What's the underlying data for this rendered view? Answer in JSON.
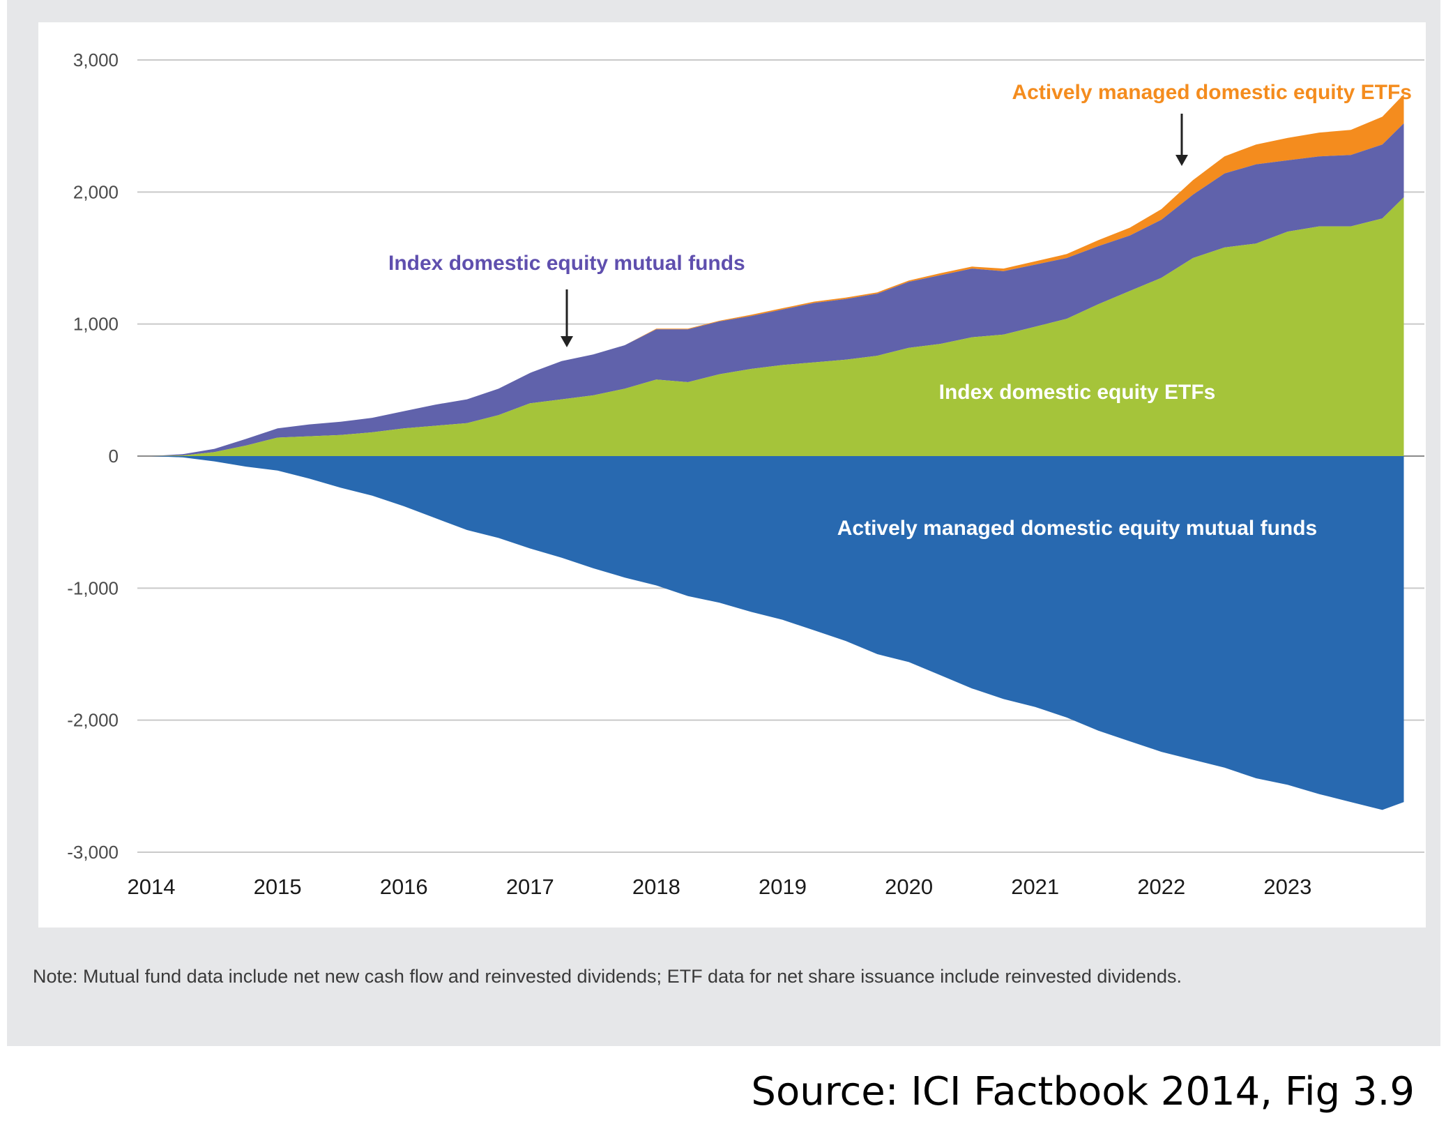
{
  "chart_data": {
    "type": "area",
    "title": "",
    "xlabel": "",
    "ylabel": "",
    "ylim": [
      -3000,
      3000
    ],
    "yticks": [
      "3,000",
      "2,000",
      "1,000",
      "0",
      "-1,000",
      "-2,000",
      "-3,000"
    ],
    "ytick_values": [
      3000,
      2000,
      1000,
      0,
      -1000,
      -2000,
      -3000
    ],
    "xticks": [
      "2014",
      "2015",
      "2016",
      "2017",
      "2018",
      "2019",
      "2020",
      "2021",
      "2022",
      "2023"
    ],
    "xtick_values": [
      2014,
      2015,
      2016,
      2017,
      2018,
      2019,
      2020,
      2021,
      2022,
      2023
    ],
    "xlim": [
      2014,
      2024
    ],
    "grid": "horizontal",
    "x": [
      2014.0,
      2014.25,
      2014.5,
      2014.75,
      2015.0,
      2015.25,
      2015.5,
      2015.75,
      2016.0,
      2016.25,
      2016.5,
      2016.75,
      2017.0,
      2017.25,
      2017.5,
      2017.75,
      2018.0,
      2018.25,
      2018.5,
      2018.75,
      2019.0,
      2019.25,
      2019.5,
      2019.75,
      2020.0,
      2020.25,
      2020.5,
      2020.75,
      2021.0,
      2021.25,
      2021.5,
      2021.75,
      2022.0,
      2022.25,
      2022.5,
      2022.75,
      2023.0,
      2023.25,
      2023.5,
      2023.75,
      2023.92
    ],
    "series": [
      {
        "name": "Index domestic equity ETFs",
        "color": "#a5c43a",
        "label_color": "#ffffff",
        "values": [
          0,
          5,
          30,
          80,
          140,
          150,
          160,
          180,
          210,
          230,
          250,
          310,
          400,
          430,
          460,
          510,
          580,
          560,
          620,
          660,
          690,
          710,
          730,
          760,
          820,
          850,
          900,
          920,
          980,
          1040,
          1150,
          1250,
          1350,
          1500,
          1580,
          1610,
          1700,
          1740,
          1740,
          1800,
          1960
        ]
      },
      {
        "name": "Index domestic equity mutual funds",
        "color": "#6062ab",
        "label_color": "#5f4fae",
        "values": [
          0,
          10,
          25,
          50,
          70,
          90,
          100,
          110,
          130,
          160,
          180,
          200,
          230,
          290,
          310,
          330,
          380,
          400,
          400,
          400,
          420,
          450,
          460,
          470,
          500,
          520,
          520,
          480,
          470,
          460,
          440,
          420,
          440,
          480,
          560,
          600,
          540,
          530,
          540,
          560,
          560
        ]
      },
      {
        "name": "Actively managed domestic equity ETFs",
        "color": "#f48c1e",
        "label_color": "#f48c1e",
        "values": [
          0,
          0,
          0,
          0,
          0,
          0,
          0,
          0,
          0,
          0,
          0,
          0,
          0,
          0,
          0,
          0,
          5,
          5,
          5,
          10,
          10,
          10,
          10,
          10,
          10,
          15,
          15,
          20,
          25,
          30,
          45,
          60,
          80,
          110,
          130,
          150,
          170,
          180,
          190,
          210,
          220
        ]
      },
      {
        "name": "Actively managed domestic equity mutual funds",
        "color": "#2869b0",
        "label_color": "#ffffff",
        "values": [
          0,
          -10,
          -40,
          -80,
          -110,
          -170,
          -240,
          -300,
          -380,
          -470,
          -560,
          -620,
          -700,
          -770,
          -850,
          -920,
          -980,
          -1060,
          -1110,
          -1180,
          -1240,
          -1320,
          -1400,
          -1500,
          -1560,
          -1660,
          -1760,
          -1840,
          -1900,
          -1980,
          -2080,
          -2160,
          -2240,
          -2300,
          -2360,
          -2440,
          -2490,
          -2560,
          -2620,
          -2680,
          -2620
        ]
      }
    ],
    "annotations": {
      "index_mf": "Index domestic equity mutual funds",
      "active_etf": "Actively managed domestic equity ETFs",
      "index_etf": "Index domestic equity ETFs",
      "active_mf": "Actively managed domestic equity mutual funds"
    }
  },
  "note": "Note: Mutual fund data include net new cash flow and reinvested dividends; ETF data for net share issuance include reinvested dividends.",
  "source": "Source: ICI Factbook 2014, Fig 3.9"
}
